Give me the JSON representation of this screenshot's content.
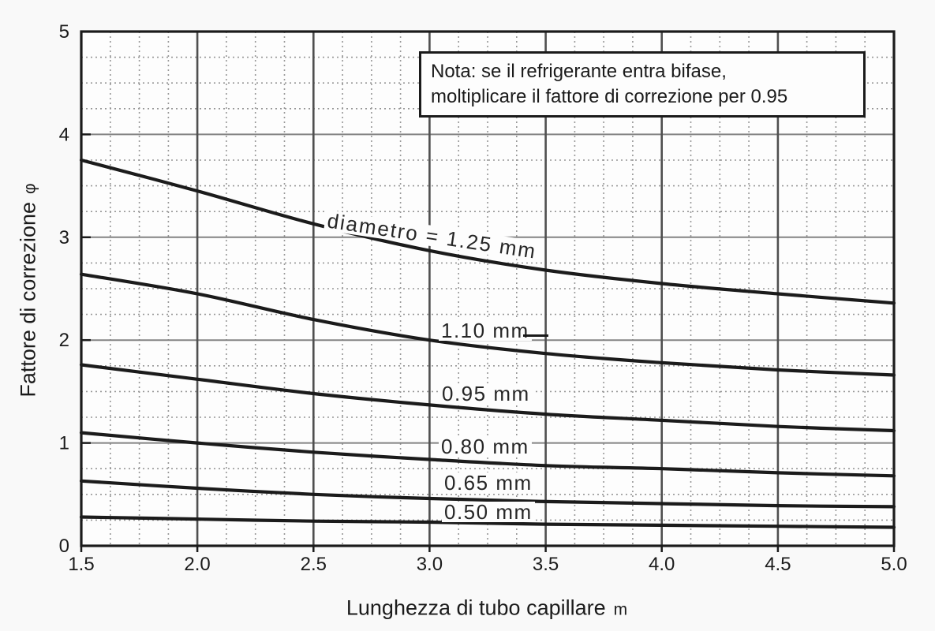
{
  "chart_data": {
    "type": "line",
    "title": "",
    "xlabel": "Lunghezza di tubo capillare",
    "xlabel_unit": "m",
    "ylabel": "Fattore di correzione",
    "ylabel_unit": "φ",
    "xlim": [
      1.5,
      5.0
    ],
    "ylim": [
      0,
      5
    ],
    "x_tick_values": [
      1.5,
      2.0,
      2.5,
      3.0,
      3.5,
      4.0,
      4.5,
      5.0
    ],
    "x_tick_labels": [
      "1.5",
      "2.0",
      "2.5",
      "3.0",
      "3.5",
      "4.0",
      "4.5",
      "5.0"
    ],
    "y_tick_values": [
      0,
      1,
      2,
      3,
      4,
      5
    ],
    "y_tick_labels": [
      "0",
      "1",
      "2",
      "3",
      "4",
      "5"
    ],
    "x_minor_step": 0.125,
    "y_minor_step": 0.25,
    "grid": "major solid + minor dotted",
    "legend_position": "inline curve labels",
    "x": [
      1.5,
      2.0,
      2.5,
      3.0,
      3.5,
      4.0,
      4.5,
      5.0
    ],
    "series": [
      {
        "name": "diametro = 1.25 mm",
        "values": [
          3.75,
          3.45,
          3.13,
          2.87,
          2.68,
          2.55,
          2.45,
          2.36
        ]
      },
      {
        "name": "1.10 mm",
        "values": [
          2.64,
          2.45,
          2.2,
          2.0,
          1.87,
          1.78,
          1.71,
          1.66
        ]
      },
      {
        "name": "0.95 mm",
        "values": [
          1.76,
          1.62,
          1.48,
          1.37,
          1.28,
          1.22,
          1.16,
          1.12
        ]
      },
      {
        "name": "0.80 mm",
        "values": [
          1.1,
          1.0,
          0.91,
          0.84,
          0.78,
          0.75,
          0.71,
          0.68
        ]
      },
      {
        "name": "0.65 mm",
        "values": [
          0.63,
          0.56,
          0.5,
          0.46,
          0.43,
          0.41,
          0.39,
          0.38
        ]
      },
      {
        "name": "0.50 mm",
        "values": [
          0.28,
          0.26,
          0.24,
          0.23,
          0.21,
          0.2,
          0.19,
          0.18
        ]
      }
    ],
    "annotation": {
      "line1": "Nota: se il refrigerante entra bifase,",
      "line2": "moltiplicare il fattore di correzione per 0.95"
    },
    "colors": {
      "curve": "#1b1b1b",
      "frame": "#1b1b1b",
      "major_grid_h": "#838383",
      "major_grid_v": "#4f4f4f",
      "minor_grid": "#979797",
      "plot_background": "#fdfdfd",
      "text": "#1b1b1b"
    }
  }
}
